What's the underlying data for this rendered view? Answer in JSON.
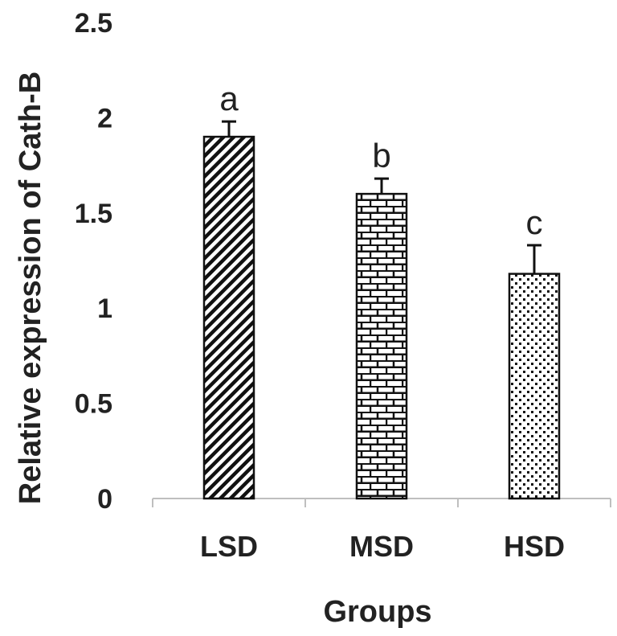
{
  "chart_data": {
    "type": "bar",
    "categories": [
      "LSD",
      "MSD",
      "HSD"
    ],
    "values": [
      1.9,
      1.6,
      1.18
    ],
    "errors": [
      0.08,
      0.08,
      0.15
    ],
    "significance_letters": [
      "a",
      "b",
      "c"
    ],
    "patterns": [
      "diagonal-stripes",
      "brick",
      "dots"
    ],
    "xlabel": "Groups",
    "ylabel": "Relative expression of Cath-B",
    "ylim": [
      0,
      2.5
    ],
    "yticks": [
      "0",
      "0.5",
      "1",
      "1.5",
      "2",
      "2.5"
    ],
    "grid": false,
    "legend": "none",
    "bar_color": "#ffffff",
    "ink_color": "#111111"
  }
}
